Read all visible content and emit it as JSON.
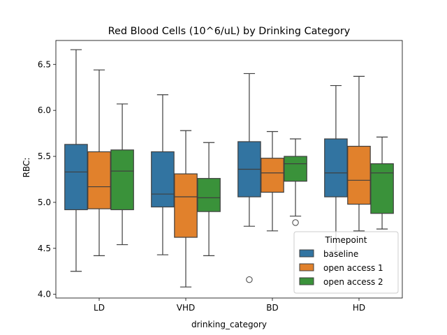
{
  "chart_data": {
    "type": "boxplot",
    "title": "Red Blood Cells (10^6/uL) by Drinking Category",
    "xlabel": "drinking_category",
    "ylabel": "RBC:",
    "categories": [
      "LD",
      "VHD",
      "BD",
      "HD"
    ],
    "ylim": [
      3.96,
      6.76
    ],
    "yticks": [
      4.0,
      4.5,
      5.0,
      5.5,
      6.0,
      6.5
    ],
    "ytick_labels": [
      "4.0",
      "4.5",
      "5.0",
      "5.5",
      "6.0",
      "6.5"
    ],
    "legend": {
      "title": "Timepoint",
      "position": "lower-right"
    },
    "series": [
      {
        "name": "baseline",
        "color": "#3274a1",
        "boxes": [
          {
            "whislo": 4.25,
            "q1": 4.92,
            "med": 5.33,
            "q3": 5.63,
            "whishi": 6.66,
            "fliers": []
          },
          {
            "whislo": 4.43,
            "q1": 4.95,
            "med": 5.09,
            "q3": 5.55,
            "whishi": 6.17,
            "fliers": []
          },
          {
            "whislo": 4.74,
            "q1": 5.06,
            "med": 5.36,
            "q3": 5.66,
            "whishi": 6.4,
            "fliers": [
              4.16
            ]
          },
          {
            "whislo": 4.47,
            "q1": 5.06,
            "med": 5.32,
            "q3": 5.69,
            "whishi": 6.27,
            "fliers": []
          }
        ]
      },
      {
        "name": "open access 1",
        "color": "#e1812c",
        "boxes": [
          {
            "whislo": 4.42,
            "q1": 4.93,
            "med": 5.17,
            "q3": 5.55,
            "whishi": 6.44,
            "fliers": []
          },
          {
            "whislo": 4.08,
            "q1": 4.62,
            "med": 5.06,
            "q3": 5.31,
            "whishi": 5.78,
            "fliers": []
          },
          {
            "whislo": 4.69,
            "q1": 5.11,
            "med": 5.32,
            "q3": 5.48,
            "whishi": 5.77,
            "fliers": []
          },
          {
            "whislo": 4.69,
            "q1": 4.98,
            "med": 5.24,
            "q3": 5.61,
            "whishi": 6.37,
            "fliers": []
          }
        ]
      },
      {
        "name": "open access 2",
        "color": "#3a923a",
        "boxes": [
          {
            "whislo": 4.54,
            "q1": 4.92,
            "med": 5.34,
            "q3": 5.57,
            "whishi": 6.07,
            "fliers": []
          },
          {
            "whislo": 4.42,
            "q1": 4.9,
            "med": 5.05,
            "q3": 5.26,
            "whishi": 5.65,
            "fliers": []
          },
          {
            "whislo": 4.85,
            "q1": 5.23,
            "med": 5.42,
            "q3": 5.5,
            "whishi": 5.69,
            "fliers": [
              4.78
            ]
          },
          {
            "whislo": 4.71,
            "q1": 4.88,
            "med": 5.32,
            "q3": 5.42,
            "whishi": 5.71,
            "fliers": []
          }
        ]
      }
    ]
  }
}
